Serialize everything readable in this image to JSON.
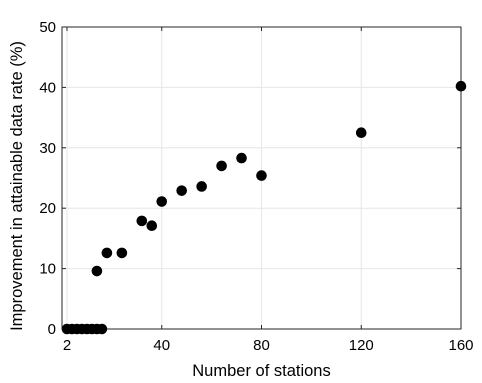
{
  "chart_data": {
    "type": "scatter",
    "title": "",
    "xlabel": "Number of stations",
    "ylabel": "Improvement in attainable data rate (%)",
    "xlim": [
      0,
      160
    ],
    "ylim": [
      0,
      50
    ],
    "x_ticks": [
      2,
      40,
      80,
      120,
      160
    ],
    "x_tick_labels": [
      "2",
      "40",
      "80",
      "120",
      "160"
    ],
    "y_ticks": [
      0,
      10,
      20,
      30,
      40,
      50
    ],
    "y_tick_labels": [
      "0",
      "10",
      "20",
      "30",
      "40",
      "50"
    ],
    "grid": true,
    "marker_color": "#000000",
    "series": [
      {
        "points": [
          {
            "x": 2,
            "y": 0
          },
          {
            "x": 4,
            "y": 0
          },
          {
            "x": 6,
            "y": 0
          },
          {
            "x": 8,
            "y": 0
          },
          {
            "x": 10,
            "y": 0
          },
          {
            "x": 12,
            "y": 0
          },
          {
            "x": 14,
            "y": 0
          },
          {
            "x": 16,
            "y": 0
          },
          {
            "x": 14,
            "y": 9.6
          },
          {
            "x": 18,
            "y": 12.6
          },
          {
            "x": 24,
            "y": 12.6
          },
          {
            "x": 32,
            "y": 17.9
          },
          {
            "x": 36,
            "y": 17.1
          },
          {
            "x": 40,
            "y": 21.1
          },
          {
            "x": 48,
            "y": 22.9
          },
          {
            "x": 56,
            "y": 23.6
          },
          {
            "x": 64,
            "y": 27.0
          },
          {
            "x": 72,
            "y": 28.3
          },
          {
            "x": 80,
            "y": 25.4
          },
          {
            "x": 120,
            "y": 32.5
          },
          {
            "x": 160,
            "y": 40.2
          }
        ]
      }
    ]
  }
}
